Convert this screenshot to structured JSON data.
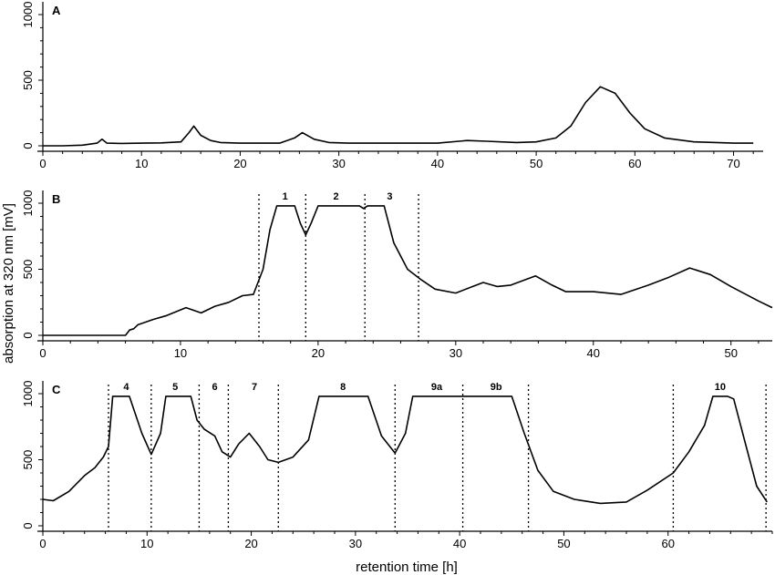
{
  "figure": {
    "ylabel": "absorption at 320 nm [mV]",
    "xlabel": "retention time [h]"
  },
  "chart_data": [
    {
      "type": "line",
      "panel": "A",
      "xlim": [
        0,
        73
      ],
      "ylim": [
        0,
        1000
      ],
      "xticks": [
        0,
        10,
        20,
        30,
        40,
        50,
        60,
        70
      ],
      "yticks": [
        0,
        500,
        1000
      ],
      "series": [
        {
          "x": [
            0,
            2,
            4,
            5.5,
            6,
            6.5,
            8,
            10,
            12,
            14,
            14.8,
            15.3,
            16,
            17,
            18,
            20,
            22,
            24,
            25.5,
            26.3,
            27.5,
            29,
            31,
            35,
            40,
            43,
            45,
            48,
            50,
            52,
            53.5,
            55,
            56.5,
            58,
            59.5,
            61,
            63,
            66,
            70,
            72
          ],
          "y": [
            0,
            0,
            5,
            20,
            50,
            20,
            18,
            20,
            22,
            30,
            100,
            150,
            80,
            40,
            25,
            20,
            20,
            20,
            60,
            100,
            50,
            25,
            20,
            20,
            20,
            40,
            35,
            25,
            30,
            60,
            150,
            330,
            450,
            400,
            250,
            130,
            60,
            30,
            20,
            20
          ]
        }
      ]
    },
    {
      "type": "line",
      "panel": "B",
      "xlim": [
        0,
        53
      ],
      "ylim": [
        0,
        1000
      ],
      "xticks": [
        0,
        10,
        20,
        30,
        40,
        50
      ],
      "yticks": [
        0,
        500,
        1000
      ],
      "fractions": [
        {
          "label": "1",
          "x": 17.6
        },
        {
          "label": "2",
          "x": 21.3
        },
        {
          "label": "3",
          "x": 25.2
        }
      ],
      "dividers": [
        15.7,
        19.1,
        23.4,
        27.3
      ],
      "series": [
        {
          "x": [
            0,
            6,
            6.3,
            6.6,
            6.9,
            7.2,
            8,
            9,
            10.4,
            11.5,
            12.5,
            13.5,
            14.5,
            15.3,
            16,
            16.5,
            17,
            18.3,
            18.7,
            19.1,
            19.5,
            20,
            23,
            23.3,
            23.6,
            24.8,
            25.5,
            26.5,
            27.5,
            28.5,
            30,
            31,
            32,
            33,
            34,
            35.8,
            37,
            38,
            40,
            42,
            44,
            45.5,
            47,
            48.5,
            50,
            52,
            53
          ],
          "y": [
            0,
            0,
            40,
            50,
            80,
            90,
            120,
            150,
            210,
            170,
            220,
            250,
            300,
            310,
            500,
            800,
            980,
            980,
            850,
            760,
            850,
            980,
            980,
            960,
            980,
            980,
            700,
            500,
            420,
            350,
            320,
            360,
            400,
            370,
            380,
            450,
            380,
            330,
            330,
            310,
            380,
            440,
            510,
            460,
            370,
            260,
            210
          ]
        }
      ]
    },
    {
      "type": "line",
      "panel": "C",
      "xlim": [
        0,
        70
      ],
      "ylim": [
        0,
        1000
      ],
      "xticks": [
        0,
        10,
        20,
        30,
        40,
        50,
        60
      ],
      "yticks": [
        0,
        500,
        1000
      ],
      "fractions": [
        {
          "label": "4",
          "x": 8.0
        },
        {
          "label": "5",
          "x": 12.7
        },
        {
          "label": "6",
          "x": 16.5
        },
        {
          "label": "7",
          "x": 20.3
        },
        {
          "label": "8",
          "x": 28.8
        },
        {
          "label": "9a",
          "x": 37.8
        },
        {
          "label": "9b",
          "x": 43.5
        },
        {
          "label": "10",
          "x": 65.0
        }
      ],
      "dividers": [
        6.3,
        10.4,
        15.0,
        17.8,
        22.6,
        33.8,
        40.3,
        46.6,
        60.5,
        69.4
      ],
      "series": [
        {
          "x": [
            0,
            1,
            2.5,
            4,
            5,
            5.8,
            6.3,
            6.7,
            8.3,
            9.5,
            10.4,
            11.3,
            11.8,
            14.2,
            14.8,
            15.5,
            16.5,
            17.2,
            18,
            18.8,
            19.8,
            20.8,
            21.6,
            22.6,
            24,
            25.5,
            26.5,
            31.2,
            32.5,
            33.8,
            34.8,
            35.5,
            45,
            46.2,
            47.5,
            49,
            51,
            53.5,
            56,
            58,
            60.5,
            62,
            63.5,
            64.3,
            65.7,
            66.3,
            67.5,
            68.5,
            69.5
          ],
          "y": [
            200,
            190,
            260,
            380,
            440,
            520,
            600,
            980,
            980,
            700,
            540,
            700,
            980,
            980,
            800,
            730,
            680,
            560,
            520,
            620,
            700,
            600,
            500,
            480,
            520,
            650,
            980,
            980,
            680,
            550,
            700,
            980,
            980,
            700,
            420,
            260,
            200,
            170,
            180,
            270,
            400,
            560,
            760,
            980,
            980,
            960,
            600,
            300,
            180
          ]
        }
      ]
    }
  ]
}
